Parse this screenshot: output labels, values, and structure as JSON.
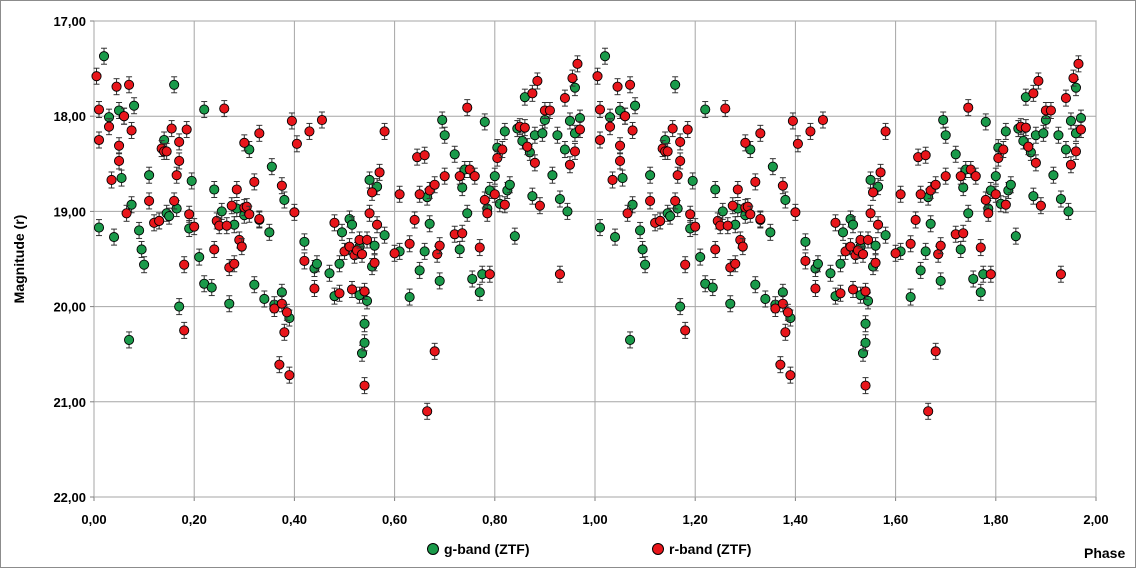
{
  "chart_data": {
    "type": "scatter",
    "title": "",
    "xlabel": "Phase",
    "ylabel": "Magnitude (r)",
    "xlim": [
      0,
      2
    ],
    "ylim": [
      17,
      22
    ],
    "y_inverted": true,
    "x_ticks": [
      "0,00",
      "0,20",
      "0,40",
      "0,60",
      "0,80",
      "1,00",
      "1,20",
      "1,40",
      "1,60",
      "1,80",
      "2,00"
    ],
    "y_ticks": [
      "17,00",
      "18,00",
      "19,00",
      "20,00",
      "21,00",
      "22,00"
    ],
    "x_tick_values": [
      0,
      0.2,
      0.4,
      0.6,
      0.8,
      1.0,
      1.2,
      1.4,
      1.6,
      1.8,
      2.0
    ],
    "y_tick_values": [
      17,
      18,
      19,
      20,
      21,
      22
    ],
    "grid": "on",
    "legend_position": "bottom",
    "series": [
      {
        "name": "g-band (ZTF)",
        "color": "#1a9a4a",
        "points": [
          [
            0.01,
            19.17
          ],
          [
            0.02,
            17.37
          ],
          [
            0.03,
            18.01
          ],
          [
            0.04,
            19.27
          ],
          [
            0.05,
            17.94
          ],
          [
            0.055,
            18.65
          ],
          [
            0.06,
            18.0
          ],
          [
            0.07,
            20.35
          ],
          [
            0.075,
            18.93
          ],
          [
            0.08,
            17.89
          ],
          [
            0.09,
            19.2
          ],
          [
            0.095,
            19.4
          ],
          [
            0.1,
            19.56
          ],
          [
            0.11,
            18.62
          ],
          [
            0.13,
            19.1
          ],
          [
            0.14,
            18.25
          ],
          [
            0.145,
            19.02
          ],
          [
            0.15,
            19.05
          ],
          [
            0.16,
            17.67
          ],
          [
            0.165,
            18.97
          ],
          [
            0.17,
            20.0
          ],
          [
            0.19,
            19.18
          ],
          [
            0.195,
            18.68
          ],
          [
            0.21,
            19.48
          ],
          [
            0.22,
            17.93
          ],
          [
            0.22,
            19.76
          ],
          [
            0.235,
            19.8
          ],
          [
            0.24,
            18.77
          ],
          [
            0.255,
            19.0
          ],
          [
            0.27,
            19.97
          ],
          [
            0.28,
            19.14
          ],
          [
            0.285,
            18.97
          ],
          [
            0.3,
            19.04
          ],
          [
            0.31,
            18.35
          ],
          [
            0.32,
            19.77
          ],
          [
            0.33,
            19.09
          ],
          [
            0.34,
            19.92
          ],
          [
            0.35,
            19.22
          ],
          [
            0.355,
            18.53
          ],
          [
            0.36,
            19.98
          ],
          [
            0.375,
            19.85
          ],
          [
            0.38,
            18.88
          ],
          [
            0.39,
            20.12
          ],
          [
            0.42,
            19.32
          ],
          [
            0.44,
            19.6
          ],
          [
            0.445,
            19.55
          ],
          [
            0.47,
            19.65
          ],
          [
            0.48,
            19.89
          ],
          [
            0.49,
            19.55
          ],
          [
            0.495,
            19.22
          ],
          [
            0.51,
            19.08
          ],
          [
            0.515,
            19.14
          ],
          [
            0.53,
            19.88
          ],
          [
            0.53,
            19.37
          ],
          [
            0.535,
            20.49
          ],
          [
            0.54,
            20.38
          ],
          [
            0.54,
            20.18
          ],
          [
            0.545,
            19.94
          ],
          [
            0.55,
            18.67
          ],
          [
            0.555,
            19.58
          ],
          [
            0.56,
            19.36
          ],
          [
            0.565,
            18.74
          ],
          [
            0.58,
            19.25
          ],
          [
            0.61,
            19.42
          ],
          [
            0.63,
            19.9
          ],
          [
            0.65,
            19.62
          ],
          [
            0.66,
            19.42
          ],
          [
            0.665,
            18.85
          ],
          [
            0.67,
            19.13
          ],
          [
            0.69,
            19.73
          ],
          [
            0.695,
            18.04
          ],
          [
            0.7,
            18.2
          ],
          [
            0.72,
            18.4
          ],
          [
            0.73,
            19.4
          ],
          [
            0.735,
            18.75
          ],
          [
            0.74,
            18.56
          ],
          [
            0.745,
            19.02
          ],
          [
            0.755,
            19.71
          ],
          [
            0.77,
            19.85
          ],
          [
            0.775,
            19.66
          ],
          [
            0.78,
            18.06
          ],
          [
            0.785,
            18.97
          ],
          [
            0.79,
            18.78
          ],
          [
            0.8,
            18.63
          ],
          [
            0.805,
            18.33
          ],
          [
            0.81,
            18.92
          ],
          [
            0.82,
            18.16
          ],
          [
            0.825,
            18.78
          ],
          [
            0.83,
            18.72
          ],
          [
            0.84,
            19.26
          ],
          [
            0.845,
            18.13
          ],
          [
            0.855,
            18.26
          ],
          [
            0.86,
            17.8
          ],
          [
            0.87,
            18.38
          ],
          [
            0.875,
            18.84
          ],
          [
            0.88,
            18.2
          ],
          [
            0.895,
            18.18
          ],
          [
            0.9,
            18.04
          ],
          [
            0.915,
            18.62
          ],
          [
            0.925,
            18.2
          ],
          [
            0.93,
            18.87
          ],
          [
            0.94,
            18.35
          ],
          [
            0.945,
            19.0
          ],
          [
            0.95,
            18.05
          ],
          [
            0.96,
            17.7
          ],
          [
            0.96,
            18.18
          ],
          [
            0.97,
            18.02
          ]
        ]
      },
      {
        "name": "r-band (ZTF)",
        "color": "#e8161b",
        "points": [
          [
            0.005,
            17.58
          ],
          [
            0.01,
            18.25
          ],
          [
            0.01,
            17.93
          ],
          [
            0.03,
            18.11
          ],
          [
            0.035,
            18.67
          ],
          [
            0.045,
            17.69
          ],
          [
            0.05,
            18.47
          ],
          [
            0.05,
            18.31
          ],
          [
            0.06,
            18.0
          ],
          [
            0.065,
            19.02
          ],
          [
            0.07,
            17.67
          ],
          [
            0.075,
            18.15
          ],
          [
            0.11,
            18.89
          ],
          [
            0.12,
            19.12
          ],
          [
            0.13,
            19.1
          ],
          [
            0.135,
            18.34
          ],
          [
            0.14,
            18.37
          ],
          [
            0.145,
            18.37
          ],
          [
            0.155,
            18.13
          ],
          [
            0.16,
            18.89
          ],
          [
            0.165,
            18.62
          ],
          [
            0.17,
            18.47
          ],
          [
            0.17,
            18.27
          ],
          [
            0.18,
            20.25
          ],
          [
            0.18,
            19.56
          ],
          [
            0.185,
            18.14
          ],
          [
            0.19,
            19.03
          ],
          [
            0.2,
            19.16
          ],
          [
            0.24,
            19.4
          ],
          [
            0.245,
            19.1
          ],
          [
            0.25,
            19.15
          ],
          [
            0.26,
            17.92
          ],
          [
            0.265,
            19.15
          ],
          [
            0.27,
            19.59
          ],
          [
            0.275,
            18.94
          ],
          [
            0.28,
            19.55
          ],
          [
            0.285,
            18.77
          ],
          [
            0.29,
            19.3
          ],
          [
            0.295,
            19.37
          ],
          [
            0.3,
            18.28
          ],
          [
            0.3,
            18.96
          ],
          [
            0.305,
            18.95
          ],
          [
            0.31,
            19.03
          ],
          [
            0.32,
            18.69
          ],
          [
            0.33,
            19.08
          ],
          [
            0.33,
            18.18
          ],
          [
            0.36,
            20.02
          ],
          [
            0.37,
            20.61
          ],
          [
            0.375,
            19.97
          ],
          [
            0.375,
            18.73
          ],
          [
            0.38,
            20.27
          ],
          [
            0.385,
            20.06
          ],
          [
            0.39,
            20.72
          ],
          [
            0.395,
            18.05
          ],
          [
            0.4,
            19.01
          ],
          [
            0.405,
            18.29
          ],
          [
            0.42,
            19.52
          ],
          [
            0.43,
            18.16
          ],
          [
            0.44,
            19.81
          ],
          [
            0.455,
            18.04
          ],
          [
            0.48,
            19.12
          ],
          [
            0.49,
            19.86
          ],
          [
            0.5,
            19.42
          ],
          [
            0.51,
            19.37
          ],
          [
            0.515,
            19.82
          ],
          [
            0.52,
            19.46
          ],
          [
            0.525,
            19.41
          ],
          [
            0.53,
            19.3
          ],
          [
            0.535,
            19.45
          ],
          [
            0.54,
            19.84
          ],
          [
            0.54,
            20.83
          ],
          [
            0.545,
            19.3
          ],
          [
            0.55,
            19.02
          ],
          [
            0.555,
            18.8
          ],
          [
            0.56,
            19.54
          ],
          [
            0.565,
            19.14
          ],
          [
            0.57,
            18.59
          ],
          [
            0.58,
            18.16
          ],
          [
            0.6,
            19.44
          ],
          [
            0.61,
            18.82
          ],
          [
            0.63,
            19.34
          ],
          [
            0.64,
            19.09
          ],
          [
            0.645,
            18.43
          ],
          [
            0.65,
            18.82
          ],
          [
            0.66,
            18.41
          ],
          [
            0.665,
            21.1
          ],
          [
            0.67,
            18.78
          ],
          [
            0.68,
            18.72
          ],
          [
            0.68,
            20.47
          ],
          [
            0.685,
            19.45
          ],
          [
            0.69,
            19.36
          ],
          [
            0.7,
            18.63
          ],
          [
            0.72,
            19.24
          ],
          [
            0.73,
            18.63
          ],
          [
            0.735,
            19.23
          ],
          [
            0.745,
            17.91
          ],
          [
            0.75,
            18.56
          ],
          [
            0.76,
            18.63
          ],
          [
            0.77,
            19.38
          ],
          [
            0.78,
            18.88
          ],
          [
            0.785,
            19.02
          ],
          [
            0.79,
            19.66
          ],
          [
            0.8,
            18.82
          ],
          [
            0.805,
            18.44
          ],
          [
            0.815,
            18.35
          ],
          [
            0.82,
            18.93
          ],
          [
            0.85,
            18.11
          ],
          [
            0.86,
            18.12
          ],
          [
            0.865,
            18.32
          ],
          [
            0.875,
            17.76
          ],
          [
            0.88,
            18.49
          ],
          [
            0.885,
            17.63
          ],
          [
            0.89,
            18.94
          ],
          [
            0.9,
            17.94
          ],
          [
            0.91,
            17.94
          ],
          [
            0.93,
            19.66
          ],
          [
            0.94,
            17.81
          ],
          [
            0.95,
            18.51
          ],
          [
            0.955,
            17.6
          ],
          [
            0.96,
            18.37
          ],
          [
            0.965,
            17.45
          ],
          [
            0.97,
            18.14
          ]
        ]
      }
    ]
  }
}
